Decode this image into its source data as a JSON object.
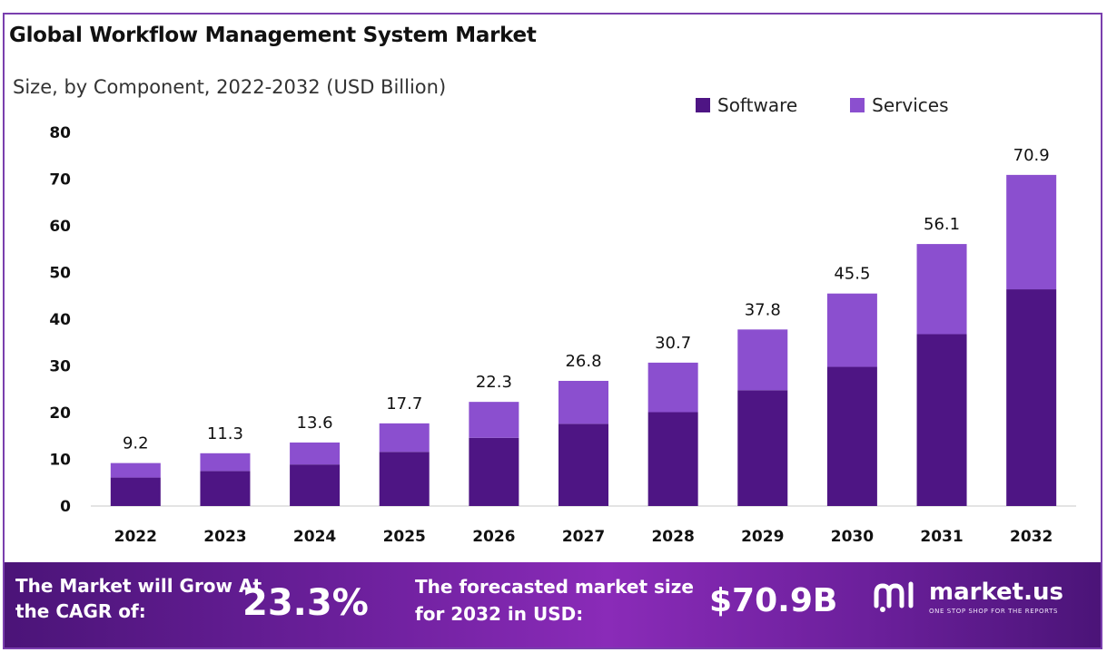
{
  "title": "Global Workflow Management System Market",
  "subtitle": "Size, by Component, 2022-2032 (USD Billion)",
  "colors": {
    "software": "#4e1584",
    "services": "#8b4fcf",
    "frame": "#7a3fae"
  },
  "legend": {
    "software": "Software",
    "services": "Services"
  },
  "chart_data": {
    "type": "bar",
    "stacked": true,
    "title": "Global Workflow Management System Market",
    "subtitle": "Size, by Component, 2022-2032 (USD Billion)",
    "categories": [
      "2022",
      "2023",
      "2024",
      "2025",
      "2026",
      "2027",
      "2028",
      "2029",
      "2030",
      "2031",
      "2032"
    ],
    "series": [
      {
        "name": "Software",
        "values": [
          6.1,
          7.5,
          8.9,
          11.6,
          14.6,
          17.6,
          20.1,
          24.8,
          29.8,
          36.8,
          46.4
        ]
      },
      {
        "name": "Services",
        "values": [
          3.1,
          3.8,
          4.7,
          6.1,
          7.7,
          9.2,
          10.6,
          13.0,
          15.7,
          19.3,
          24.5
        ]
      }
    ],
    "totals": [
      "9.2",
      "11.3",
      "13.6",
      "17.7",
      "22.3",
      "26.8",
      "30.7",
      "37.8",
      "45.5",
      "56.1",
      "70.9"
    ],
    "ylim": [
      0,
      80
    ],
    "yticks": [
      "0",
      "10",
      "20",
      "30",
      "40",
      "50",
      "60",
      "70",
      "80"
    ],
    "grid": false,
    "legend_position": "top-right"
  },
  "banner": {
    "cagr_label": "The Market will Grow At the CAGR of:",
    "cagr_value": "23.3%",
    "forecast_label": "The forecasted market size for 2032 in USD:",
    "forecast_value": "$70.9B",
    "brand_name": "market.us",
    "brand_tagline": "ONE STOP SHOP FOR THE REPORTS"
  }
}
